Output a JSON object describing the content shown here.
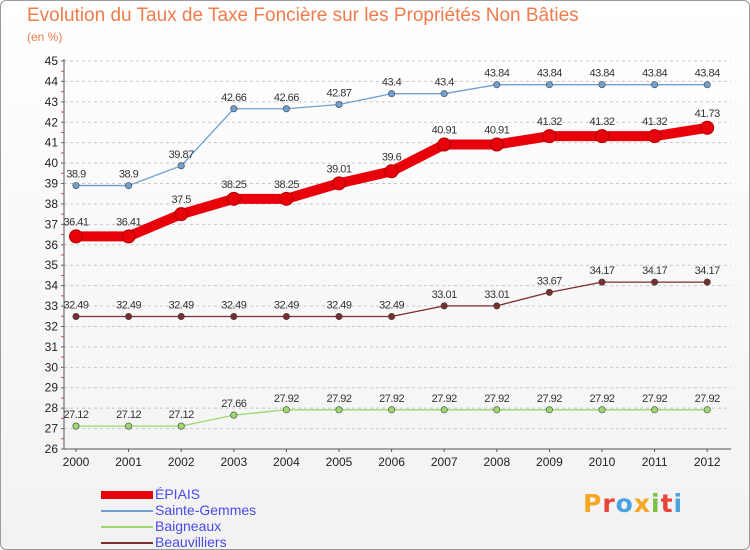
{
  "header": {
    "title": "Evolution du Taux de Taxe Foncière sur les Propriétés Non Bâties",
    "unit": "(en %)"
  },
  "logo": {
    "text": "Proxiti",
    "colors": [
      "#f5a623",
      "#e8443a",
      "#4aa3df",
      "#f5a623",
      "#7ac143",
      "#e8443a",
      "#4aa3df"
    ]
  },
  "chart_data": {
    "type": "line",
    "title": "Evolution du Taux de Taxe Foncière sur les Propriétés Non Bâties",
    "ylabel": "(en %)",
    "xlabel": "",
    "x": [
      "2000",
      "2001",
      "2002",
      "2003",
      "2004",
      "2005",
      "2006",
      "2007",
      "2008",
      "2009",
      "2010",
      "2011",
      "2012"
    ],
    "ylim": [
      26,
      45
    ],
    "yticks": [
      "26",
      "27",
      "28",
      "29",
      "30",
      "31",
      "32",
      "33",
      "34",
      "35",
      "36",
      "37",
      "38",
      "39",
      "40",
      "41",
      "42",
      "43",
      "44",
      "45"
    ],
    "grid": "horizontal dashed",
    "legend_position": "bottom-left",
    "series": [
      {
        "name": "ÉPIAIS",
        "color": "#e8000b",
        "emphasis": true,
        "values": [
          36.41,
          36.41,
          37.5,
          38.25,
          38.25,
          39.01,
          39.6,
          40.91,
          40.91,
          41.32,
          41.32,
          41.32,
          41.73
        ],
        "labels": [
          "36.41",
          "36.41",
          "37.5",
          "38.25",
          "38.25",
          "39.01",
          "39.6",
          "40.91",
          "40.91",
          "41.32",
          "41.32",
          "41.32",
          "41.73"
        ]
      },
      {
        "name": "Sainte-Gemmes",
        "color": "#6fa0d1",
        "values": [
          38.9,
          38.9,
          39.87,
          42.66,
          42.66,
          42.87,
          43.4,
          43.4,
          43.84,
          43.84,
          43.84,
          43.84,
          43.84
        ],
        "labels": [
          "38.9",
          "38.9",
          "39.87",
          "42.66",
          "42.66",
          "42.87",
          "43.4",
          "43.4",
          "43.84",
          "43.84",
          "43.84",
          "43.84",
          "43.84"
        ]
      },
      {
        "name": "Baigneaux",
        "color": "#9bd86e",
        "values": [
          27.12,
          27.12,
          27.12,
          27.66,
          27.92,
          27.92,
          27.92,
          27.92,
          27.92,
          27.92,
          27.92,
          27.92,
          27.92
        ],
        "labels": [
          "27.12",
          "27.12",
          "27.12",
          "27.66",
          "27.92",
          "27.92",
          "27.92",
          "27.92",
          "27.92",
          "27.92",
          "27.92",
          "27.92",
          "27.92"
        ]
      },
      {
        "name": "Beauvilliers",
        "color": "#7a2e2e",
        "values": [
          32.49,
          32.49,
          32.49,
          32.49,
          32.49,
          32.49,
          32.49,
          33.01,
          33.01,
          33.67,
          34.17,
          34.17,
          34.17
        ],
        "labels": [
          "32.49",
          "32.49",
          "32.49",
          "32.49",
          "32.49",
          "32.49",
          "32.49",
          "33.01",
          "33.01",
          "33.67",
          "34.17",
          "34.17",
          "34.17"
        ]
      }
    ]
  }
}
